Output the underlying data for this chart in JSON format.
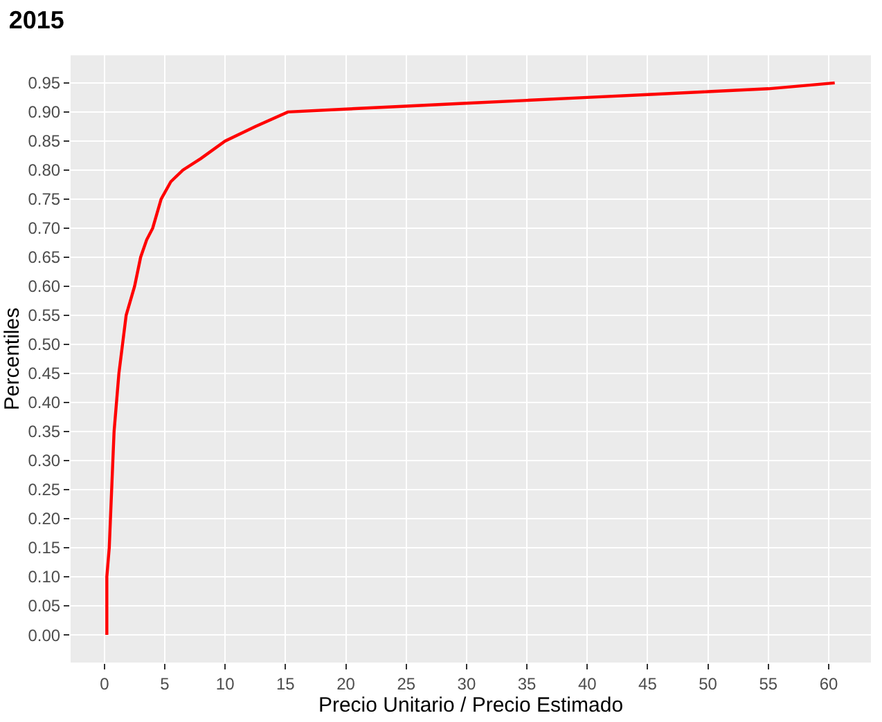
{
  "chart_data": {
    "type": "line",
    "title": "2015",
    "xlabel": "Precio Unitario / Precio Estimado",
    "ylabel": "Percentiles",
    "series": [
      {
        "color": "#ff0000",
        "x": [
          0.2,
          0.2,
          0.4,
          0.6,
          0.8,
          1.0,
          1.2,
          1.5,
          1.8,
          2.5,
          3.0,
          3.5,
          4.0,
          4.7,
          5.5,
          6.5,
          8.0,
          10.0,
          12.5,
          15.2,
          20,
          25,
          30,
          35,
          40,
          45,
          50,
          55,
          60.5
        ],
        "values": [
          0.0,
          0.1,
          0.15,
          0.25,
          0.35,
          0.4,
          0.45,
          0.5,
          0.55,
          0.6,
          0.65,
          0.68,
          0.7,
          0.75,
          0.78,
          0.8,
          0.82,
          0.85,
          0.875,
          0.9,
          0.905,
          0.91,
          0.915,
          0.92,
          0.925,
          0.93,
          0.935,
          0.94,
          0.95
        ]
      }
    ],
    "xlim": [
      -2.8,
      63.5
    ],
    "ylim": [
      -0.0475,
      0.9975
    ],
    "xticks": [
      0,
      5,
      10,
      15,
      20,
      25,
      30,
      35,
      40,
      45,
      50,
      55,
      60
    ],
    "yticks": [
      {
        "value": 0,
        "label": "0.00"
      },
      {
        "value": 0.05,
        "label": "0.05"
      },
      {
        "value": 0.1,
        "label": "0.10"
      },
      {
        "value": 0.15,
        "label": "0.15"
      },
      {
        "value": 0.2,
        "label": "0.20"
      },
      {
        "value": 0.25,
        "label": "0.25"
      },
      {
        "value": 0.3,
        "label": "0.30"
      },
      {
        "value": 0.35,
        "label": "0.35"
      },
      {
        "value": 0.4,
        "label": "0.40"
      },
      {
        "value": 0.45,
        "label": "0.45"
      },
      {
        "value": 0.5,
        "label": "0.50"
      },
      {
        "value": 0.55,
        "label": "0.55"
      },
      {
        "value": 0.6,
        "label": "0.60"
      },
      {
        "value": 0.65,
        "label": "0.65"
      },
      {
        "value": 0.7,
        "label": "0.70"
      },
      {
        "value": 0.75,
        "label": "0.75"
      },
      {
        "value": 0.8,
        "label": "0.80"
      },
      {
        "value": 0.85,
        "label": "0.85"
      },
      {
        "value": 0.9,
        "label": "0.90"
      },
      {
        "value": 0.95,
        "label": "0.95"
      }
    ],
    "grid": true,
    "legend": false,
    "marker": "none",
    "line_style": "solid"
  }
}
